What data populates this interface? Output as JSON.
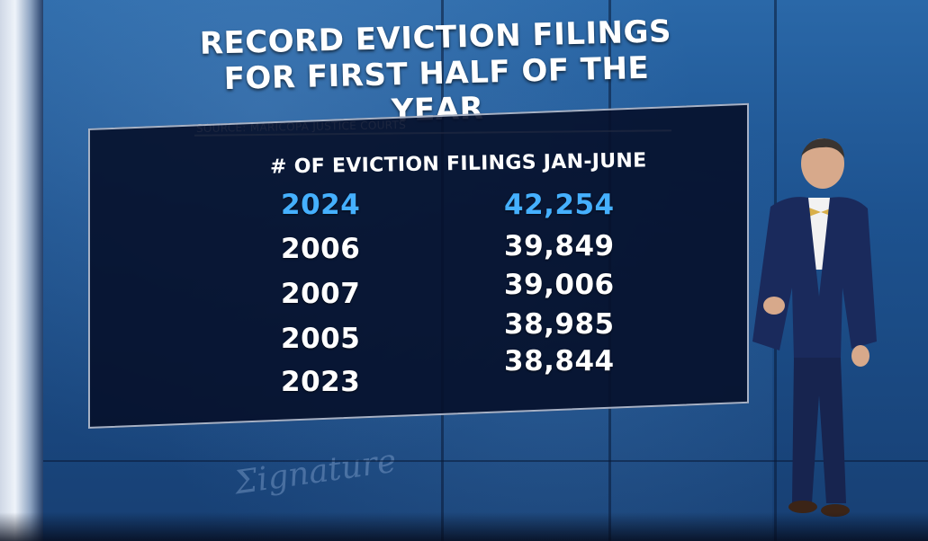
{
  "headline": {
    "line1": "RECORD EVICTION FILINGS",
    "line2": "FOR FIRST HALF OF THE YEAR"
  },
  "source": "SOURCE: MARICOPA JUSTICE COURTS",
  "table": {
    "header": "# OF EVICTION FILINGS JAN-JUNE",
    "rows": [
      {
        "year": "2024",
        "value": "42,254",
        "highlight": true
      },
      {
        "year": "2006",
        "value": "39,849",
        "highlight": false
      },
      {
        "year": "2007",
        "value": "39,006",
        "highlight": false
      },
      {
        "year": "2005",
        "value": "38,985",
        "highlight": false
      },
      {
        "year": "2023",
        "value": "38,844",
        "highlight": false
      }
    ]
  },
  "colors": {
    "highlight": "#45b0ff",
    "text": "#ffffff",
    "table_bg": "#06102a",
    "wall": "#1d528f"
  }
}
